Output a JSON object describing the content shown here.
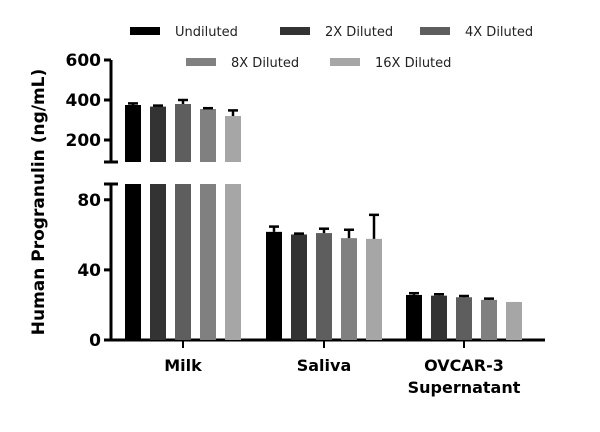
{
  "chart_data": {
    "type": "bar",
    "title": "",
    "xlabel": "",
    "ylabel": "Human Progranulin (ng/mL)",
    "y_axis_broken": true,
    "ylim_lower": [
      0,
      89
    ],
    "ylim_upper": [
      90,
      600
    ],
    "yticks_lower": [
      0,
      40,
      80
    ],
    "yticks_upper": [
      200,
      400,
      600
    ],
    "categories": [
      "Milk",
      "Saliva",
      "OVCAR-3 Supernatant"
    ],
    "category_lines": [
      [
        "Milk"
      ],
      [
        "Saliva"
      ],
      [
        "OVCAR-3",
        "Supernatant"
      ]
    ],
    "legend_position": "top",
    "series": [
      {
        "name": "Undiluted",
        "color": "#000000",
        "values": [
          375,
          61.7,
          25.7
        ],
        "errors": [
          8,
          3,
          1
        ]
      },
      {
        "name": "2X Diluted",
        "color": "#333333",
        "values": [
          367,
          60.2,
          25.3
        ],
        "errors": [
          5,
          0.5,
          0.8
        ]
      },
      {
        "name": "4X Diluted",
        "color": "#5e5e5e",
        "values": [
          380,
          61,
          24.4
        ],
        "errors": [
          20,
          2.5,
          0.7
        ]
      },
      {
        "name": "8X Diluted",
        "color": "#808080",
        "values": [
          355,
          58.1,
          22.9
        ],
        "errors": [
          4,
          4.8,
          0.7
        ]
      },
      {
        "name": "16X Diluted",
        "color": "#a6a6a6",
        "values": [
          320,
          57.7,
          21.7
        ],
        "errors": [
          28,
          13.7,
          0
        ]
      }
    ]
  }
}
